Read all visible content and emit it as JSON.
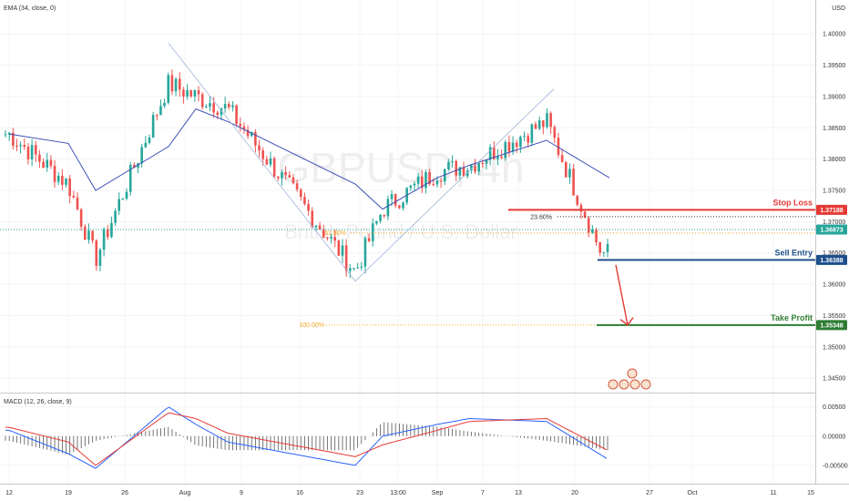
{
  "watermark": {
    "symbol": "GBPUSD, 4h",
    "name": "British Pound / U.S. Dollar"
  },
  "currency_label": "USD",
  "indicators": {
    "ema_label": "EMA (34, close, 0)",
    "macd_label": "MACD (12, 26, close, 9)"
  },
  "levels": {
    "stop_loss": {
      "label": "Stop Loss",
      "price": 1.37188,
      "price_text": "1.37188",
      "color": "#e53935"
    },
    "current": {
      "price": 1.36873,
      "price_text": "1.36873",
      "color": "#26a69a"
    },
    "sell_entry": {
      "label": "Sell Entry",
      "price": 1.36388,
      "price_text": "1.36388",
      "color": "#1e4e8c"
    },
    "take_profit": {
      "label": "Take Profit",
      "price": 1.35348,
      "price_text": "1.35348",
      "color": "#2e7d32"
    },
    "fib_23_6": {
      "label": "23.60%",
      "price": 1.3708
    },
    "fib_61_8": {
      "label": "61.80%",
      "price": 1.3682
    },
    "fib_100": {
      "label": "100.00%",
      "price": 1.3535
    }
  },
  "price_axis": [
    "1.40000",
    "1.39500",
    "1.39000",
    "1.38500",
    "1.38000",
    "1.37500",
    "1.37000",
    "1.36500",
    "1.36000",
    "1.35500",
    "1.35000",
    "1.34500"
  ],
  "macd_axis": [
    "0.00500",
    "0.00000",
    "-0.00500"
  ],
  "time_axis": [
    "12",
    "19",
    "26",
    "Aug",
    "9",
    "16",
    "23",
    "13:00",
    "Sep",
    "7",
    "13",
    "20",
    "27",
    "Oct",
    "11",
    "15"
  ],
  "colors": {
    "up": "#26a69a",
    "down": "#ef5350",
    "ema": "#3f51b5",
    "macd_line": "#2962ff",
    "signal_line": "#e53935",
    "histogram": "#555555",
    "fib": "#f5a623"
  },
  "chart_data": {
    "type": "line",
    "title": "",
    "xlabel": "",
    "ylabel": "",
    "ylim": [
      1.344,
      1.4025
    ],
    "x": [
      "12",
      "19",
      "26",
      "Aug",
      "9",
      "16",
      "23",
      "13:00",
      "Sep",
      "7",
      "13",
      "20"
    ],
    "series": [
      {
        "name": "close",
        "values": [
          1.384,
          1.376,
          1.364,
          1.392,
          1.39,
          1.388,
          1.362,
          1.372,
          1.378,
          1.379,
          1.386,
          1.365
        ]
      },
      {
        "name": "EMA (34, close, 0)",
        "values": [
          1.384,
          1.3825,
          1.375,
          1.382,
          1.388,
          1.386,
          1.376,
          1.372,
          1.377,
          1.379,
          1.383,
          1.377
        ]
      }
    ],
    "macd": {
      "name": "MACD (12, 26, close, 9)",
      "ylim": [
        -0.0075,
        0.0065
      ],
      "macd_line": [
        0.001,
        -0.003,
        -0.0055,
        0.005,
        0.002,
        -0.001,
        -0.005,
        0.0,
        0.002,
        0.003,
        0.0025,
        -0.004
      ],
      "signal_line": [
        0.0015,
        -0.001,
        -0.005,
        0.004,
        0.003,
        0.0005,
        -0.0035,
        -0.0015,
        0.001,
        0.0025,
        0.003,
        -0.0025
      ]
    }
  }
}
